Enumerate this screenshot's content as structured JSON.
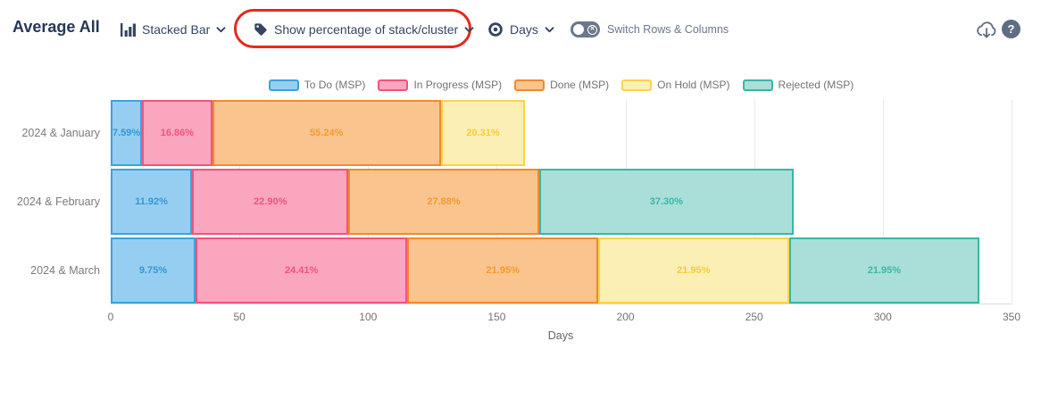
{
  "header": {
    "title": "Average All",
    "chart_type_label": "Stacked Bar",
    "percentage_label": "Show percentage of stack/cluster",
    "unit_label": "Days",
    "switch_label": "Switch Rows & Columns",
    "help_label": "?",
    "annotation_color": "#E5291D"
  },
  "chart_data": {
    "type": "bar",
    "orientation": "horizontal",
    "stacked": true,
    "grid": true,
    "legend_position": "top",
    "xlabel": "Days",
    "xlim": [
      0,
      350
    ],
    "xticks": [
      0,
      50,
      100,
      150,
      200,
      250,
      300,
      350
    ],
    "categories": [
      "2024 & January",
      "2024 & February",
      "2024 & March"
    ],
    "category_totals_days": [
      161,
      265.4,
      337.6
    ],
    "series": [
      {
        "name": "To Do (MSP)",
        "fill": "#96CEF2",
        "stroke": "#3BA3DC",
        "label_color": "#3597D3",
        "values": [
          12.2,
          31.6,
          32.9
        ],
        "percent_labels": [
          "7.59%",
          "11.92%",
          "9.75%"
        ]
      },
      {
        "name": "In Progress (MSP)",
        "fill": "#F9A6BE",
        "stroke": "#F3537E",
        "label_color": "#F3537E",
        "values": [
          27.2,
          60.8,
          82.4
        ],
        "percent_labels": [
          "16.86%",
          "22.90%",
          "24.41%"
        ]
      },
      {
        "name": "Done (MSP)",
        "fill": "#F9C48E",
        "stroke": "#F08A2D",
        "label_color": "#F59B2D",
        "values": [
          88.9,
          74.0,
          74.1
        ],
        "percent_labels": [
          "55.24%",
          "27.88%",
          "21.95%"
        ]
      },
      {
        "name": "On Hold (MSP)",
        "fill": "#FCEFB4",
        "stroke": "#FBD34C",
        "label_color": "#F5CB3C",
        "values": [
          32.7,
          0,
          74.1
        ],
        "percent_labels": [
          "20.31%",
          null,
          "21.95%"
        ]
      },
      {
        "name": "Rejected (MSP)",
        "fill": "#A9DFD8",
        "stroke": "#3AB6A8",
        "label_color": "#3AB6A8",
        "values": [
          0,
          99.0,
          74.1
        ],
        "percent_labels": [
          null,
          "37.30%",
          "21.95%"
        ]
      }
    ]
  }
}
